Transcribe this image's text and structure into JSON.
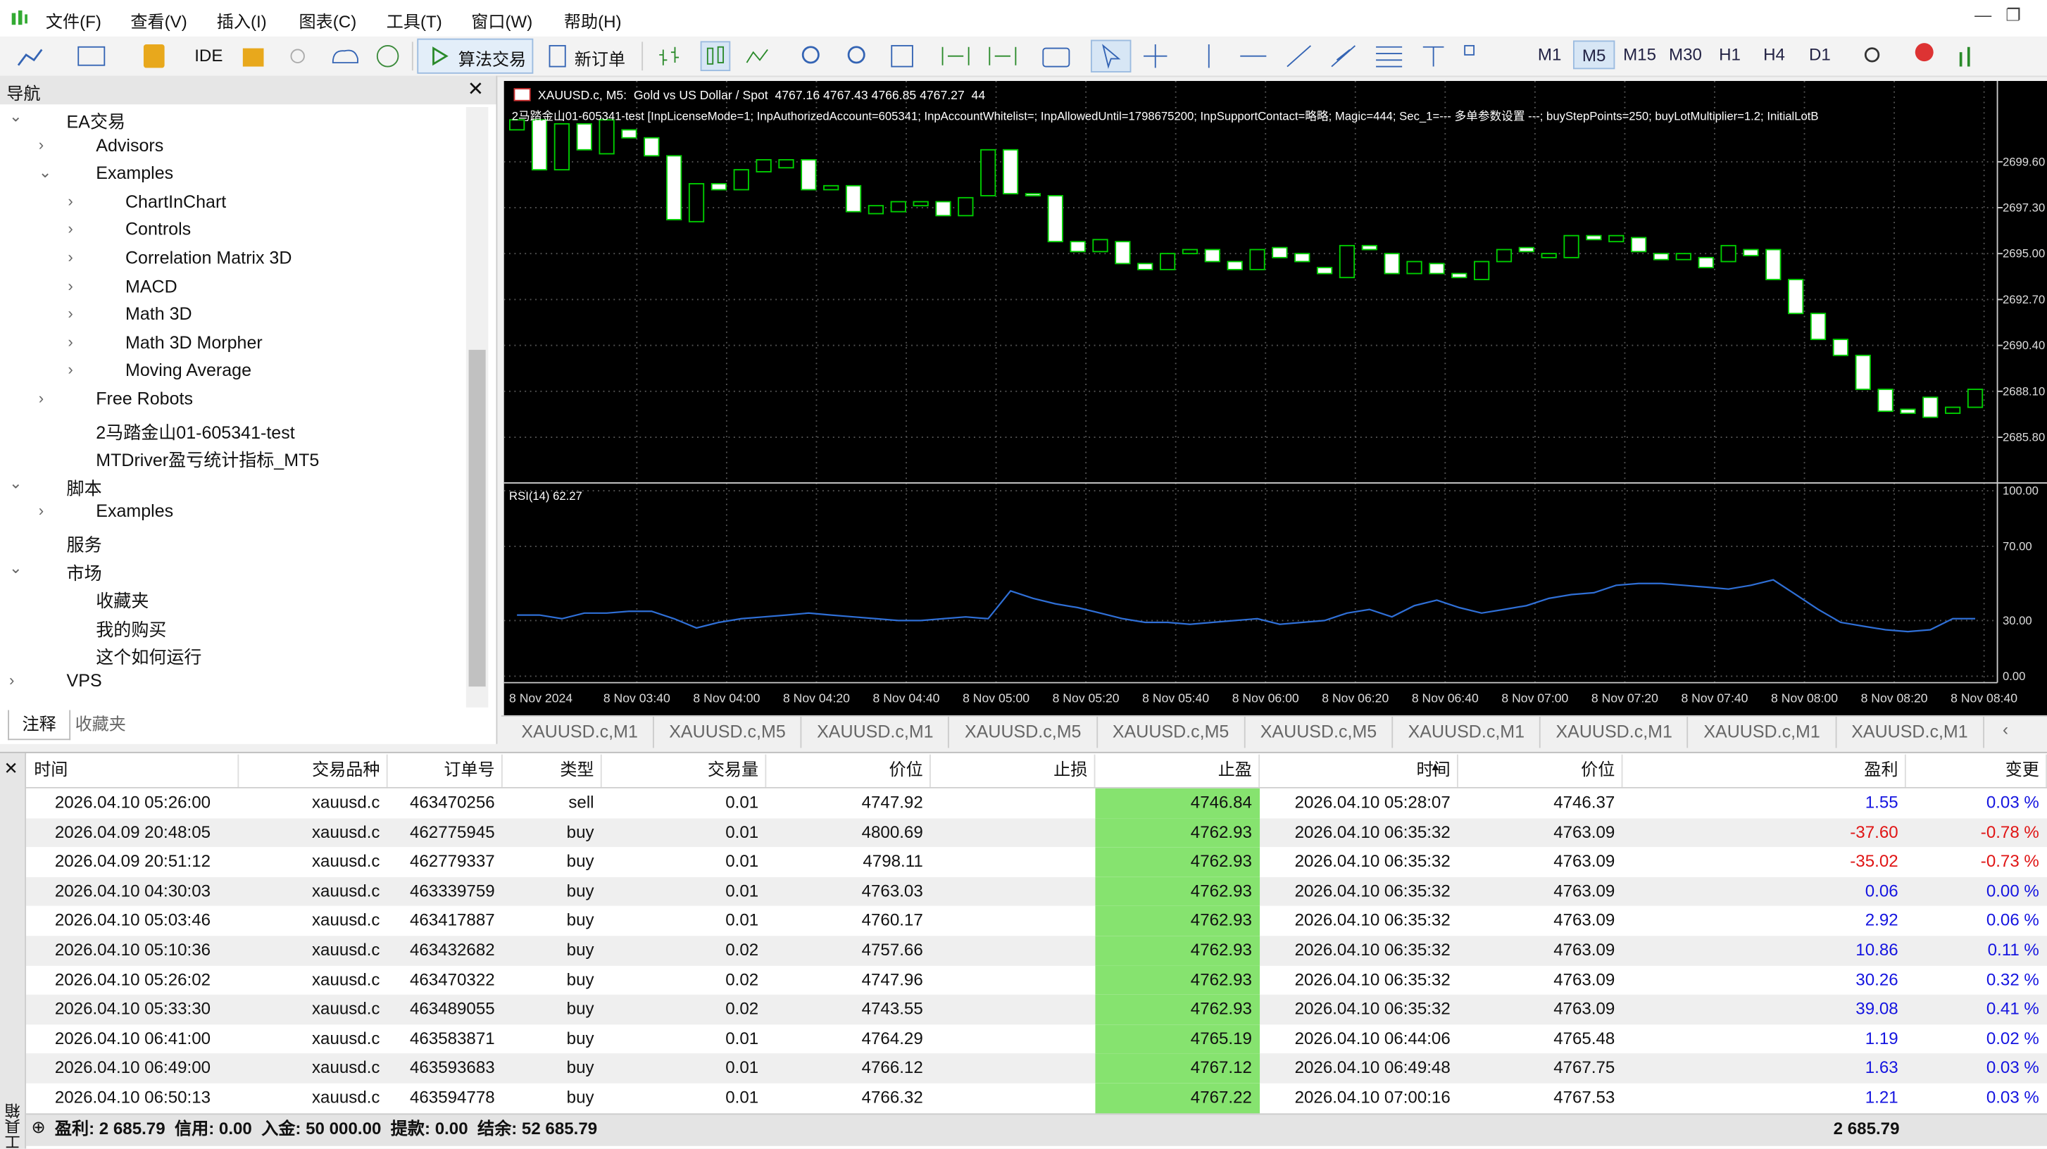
{
  "menu": [
    "文件(F)",
    "查看(V)",
    "插入(I)",
    "图表(C)",
    "工具(T)",
    "窗口(W)",
    "帮助(H)"
  ],
  "toolbar": {
    "ide": "IDE",
    "algo": "算法交易",
    "new_order": "新订单",
    "timeframes": [
      "M1",
      "M5",
      "M15",
      "M30",
      "H1",
      "H4",
      "D1"
    ],
    "active_timeframe": "M5"
  },
  "navigator": {
    "title": "导航",
    "tree": [
      {
        "label": "EA交易",
        "children": [
          {
            "label": "Advisors"
          },
          {
            "label": "Examples",
            "children": [
              {
                "label": "ChartInChart"
              },
              {
                "label": "Controls"
              },
              {
                "label": "Correlation Matrix 3D"
              },
              {
                "label": "MACD"
              },
              {
                "label": "Math 3D"
              },
              {
                "label": "Math 3D Morpher"
              },
              {
                "label": "Moving Average"
              }
            ]
          },
          {
            "label": "Free Robots"
          },
          {
            "label": "2马踏金山01-605341-test"
          },
          {
            "label": "MTDriver盈亏统计指标_MT5"
          }
        ]
      },
      {
        "label": "脚本",
        "children": [
          {
            "label": "Examples"
          }
        ]
      },
      {
        "label": "服务"
      },
      {
        "label": "市场",
        "children": [
          {
            "label": "收藏夹"
          },
          {
            "label": "我的购买"
          },
          {
            "label": "这个如何运行"
          }
        ]
      },
      {
        "label": "VPS"
      }
    ],
    "tabs": [
      "注释",
      "收藏夹"
    ]
  },
  "chart": {
    "title": "XAUUSD.c, M5:  Gold vs US Dollar / Spot  4767.16 4767.43 4766.85 4767.27  44",
    "ea_label": "2马踏金山01-605341-test [InpLicenseMode=1; InpAuthorizedAccount=605341; InpAccountWhitelist=; InpAllowedUntil=1798675200; InpSupportContact=略略; Magic=444; Sec_1=--- 多单参数设置 ---; buyStepPoints=250; buyLotMultiplier=1.2; InitialLotB",
    "ylim": [
      2683.64,
      2703.65
    ],
    "yticks": [
      {
        "value": 2699.6,
        "label": "2699.60"
      },
      {
        "value": 2697.3,
        "label": "2697.30"
      },
      {
        "value": 2695,
        "label": "2695.00"
      },
      {
        "value": 2692.7,
        "label": "2692.70"
      },
      {
        "value": 2690.4,
        "label": "2690.40"
      },
      {
        "value": 2688.1,
        "label": "2688.10"
      },
      {
        "value": 2685.8,
        "label": "2685.80"
      }
    ],
    "candles": [
      [
        2701.2,
        2701.7
      ],
      [
        2701.7,
        2699.2
      ],
      [
        2699.2,
        2701.5
      ],
      [
        2701.5,
        2700.2
      ],
      [
        2700.0,
        2701.7
      ],
      [
        2701.2,
        2700.8
      ],
      [
        2700.8,
        2699.9
      ],
      [
        2699.9,
        2696.7
      ],
      [
        2696.6,
        2698.5
      ],
      [
        2698.5,
        2698.2
      ],
      [
        2698.2,
        2699.2
      ],
      [
        2699.1,
        2699.7
      ],
      [
        2699.3,
        2699.7
      ],
      [
        2699.7,
        2698.2
      ],
      [
        2698.2,
        2698.4
      ],
      [
        2698.4,
        2697.1
      ],
      [
        2697.0,
        2697.4
      ],
      [
        2697.1,
        2697.6
      ],
      [
        2697.4,
        2697.6
      ],
      [
        2697.6,
        2696.9
      ],
      [
        2696.9,
        2697.8
      ],
      [
        2697.9,
        2700.2
      ],
      [
        2700.2,
        2698.0
      ],
      [
        2698.0,
        2697.9
      ],
      [
        2697.9,
        2695.6
      ],
      [
        2695.6,
        2695.1
      ],
      [
        2695.1,
        2695.7
      ],
      [
        2695.6,
        2694.5
      ],
      [
        2694.5,
        2694.2
      ],
      [
        2694.2,
        2695.0
      ],
      [
        2695.0,
        2695.2
      ],
      [
        2695.2,
        2694.6
      ],
      [
        2694.6,
        2694.2
      ],
      [
        2694.2,
        2695.2
      ],
      [
        2695.3,
        2694.8
      ],
      [
        2695.0,
        2694.6
      ],
      [
        2694.3,
        2694.0
      ],
      [
        2693.8,
        2695.4
      ],
      [
        2695.4,
        2695.2
      ],
      [
        2695.0,
        2694.0
      ],
      [
        2694.0,
        2694.6
      ],
      [
        2694.5,
        2694.0
      ],
      [
        2694.0,
        2693.8
      ],
      [
        2693.7,
        2694.6
      ],
      [
        2694.6,
        2695.2
      ],
      [
        2695.3,
        2695.1
      ],
      [
        2694.8,
        2695.0
      ],
      [
        2694.8,
        2695.9
      ],
      [
        2695.9,
        2695.7
      ],
      [
        2695.6,
        2695.9
      ],
      [
        2695.8,
        2695.1
      ],
      [
        2695.0,
        2694.7
      ],
      [
        2694.7,
        2695.0
      ],
      [
        2694.8,
        2694.3
      ],
      [
        2694.6,
        2695.4
      ],
      [
        2695.2,
        2694.9
      ],
      [
        2695.2,
        2693.7
      ],
      [
        2693.7,
        2692.0
      ],
      [
        2692.0,
        2690.7
      ],
      [
        2690.7,
        2689.9
      ],
      [
        2689.9,
        2688.2
      ],
      [
        2688.2,
        2687.1
      ],
      [
        2687.2,
        2687.0
      ],
      [
        2687.8,
        2686.8
      ],
      [
        2687.0,
        2687.3
      ],
      [
        2687.3,
        2688.2
      ]
    ],
    "rsi_label": "RSI(14) 62.27",
    "rsi_ylim": [
      -3.5,
      102.8
    ],
    "rsi_ticks": [
      {
        "value": 100,
        "label": "100.00"
      },
      {
        "value": 70,
        "label": "70.00"
      },
      {
        "value": 30,
        "label": "30.00"
      },
      {
        "value": 0,
        "label": "0.00"
      }
    ],
    "rsi": [
      33,
      33,
      31,
      34,
      34,
      35,
      35,
      31,
      26,
      29,
      31,
      32,
      33,
      34,
      33,
      32,
      31,
      30,
      30,
      31,
      32,
      31,
      46,
      42,
      39,
      37,
      34,
      31,
      29,
      29,
      28,
      29,
      30,
      31,
      28,
      29,
      30,
      34,
      36,
      32,
      38,
      41,
      37,
      34,
      36,
      38,
      42,
      44,
      45,
      49,
      50,
      50,
      49,
      48,
      47,
      49,
      52,
      44,
      36,
      29,
      27,
      25,
      24,
      25,
      31,
      31
    ],
    "time_labels": [
      "8 Nov 2024",
      "8 Nov 03:40",
      "8 Nov 04:00",
      "8 Nov 04:20",
      "8 Nov 04:40",
      "8 Nov 05:00",
      "8 Nov 05:20",
      "8 Nov 05:40",
      "8 Nov 06:00",
      "8 Nov 06:20",
      "8 Nov 06:40",
      "8 Nov 07:00",
      "8 Nov 07:20",
      "8 Nov 07:40",
      "8 Nov 08:00",
      "8 Nov 08:20",
      "8 Nov 08:40"
    ]
  },
  "chart_tabs": [
    "XAUUSD.c,M1",
    "XAUUSD.c,M5",
    "XAUUSD.c,M1",
    "XAUUSD.c,M5",
    "XAUUSD.c,M5",
    "XAUUSD.c,M5",
    "XAUUSD.c,M1",
    "XAUUSD.c,M1",
    "XAUUSD.c,M1",
    "XAUUSD.c,M1"
  ],
  "toolbox_title": "工具箱",
  "table": {
    "columns": [
      "时间",
      "交易品种",
      "订单号",
      "类型",
      "交易量",
      "价位",
      "止损",
      "止盈",
      "时间",
      "价位",
      "盈利",
      "变更"
    ],
    "rows": [
      {
        "open_time": "2026.04.10 05:26:00",
        "symbol": "xauusd.c",
        "ticket": "463470256",
        "type": "sell",
        "volume": "0.01",
        "price": "4747.92",
        "tp": "4746.84",
        "close_time": "2026.04.10 05:28:07",
        "close_price": "4746.37",
        "profit": "1.55",
        "change": "0.03 %"
      },
      {
        "open_time": "2026.04.09 20:48:05",
        "symbol": "xauusd.c",
        "ticket": "462775945",
        "type": "buy",
        "volume": "0.01",
        "price": "4800.69",
        "tp": "4762.93",
        "close_time": "2026.04.10 06:35:32",
        "close_price": "4763.09",
        "profit": "-37.60",
        "change": "-0.78 %"
      },
      {
        "open_time": "2026.04.09 20:51:12",
        "symbol": "xauusd.c",
        "ticket": "462779337",
        "type": "buy",
        "volume": "0.01",
        "price": "4798.11",
        "tp": "4762.93",
        "close_time": "2026.04.10 06:35:32",
        "close_price": "4763.09",
        "profit": "-35.02",
        "change": "-0.73 %"
      },
      {
        "open_time": "2026.04.10 04:30:03",
        "symbol": "xauusd.c",
        "ticket": "463339759",
        "type": "buy",
        "volume": "0.01",
        "price": "4763.03",
        "tp": "4762.93",
        "close_time": "2026.04.10 06:35:32",
        "close_price": "4763.09",
        "profit": "0.06",
        "change": "0.00 %"
      },
      {
        "open_time": "2026.04.10 05:03:46",
        "symbol": "xauusd.c",
        "ticket": "463417887",
        "type": "buy",
        "volume": "0.01",
        "price": "4760.17",
        "tp": "4762.93",
        "close_time": "2026.04.10 06:35:32",
        "close_price": "4763.09",
        "profit": "2.92",
        "change": "0.06 %"
      },
      {
        "open_time": "2026.04.10 05:10:36",
        "symbol": "xauusd.c",
        "ticket": "463432682",
        "type": "buy",
        "volume": "0.02",
        "price": "4757.66",
        "tp": "4762.93",
        "close_time": "2026.04.10 06:35:32",
        "close_price": "4763.09",
        "profit": "10.86",
        "change": "0.11 %"
      },
      {
        "open_time": "2026.04.10 05:26:02",
        "symbol": "xauusd.c",
        "ticket": "463470322",
        "type": "buy",
        "volume": "0.02",
        "price": "4747.96",
        "tp": "4762.93",
        "close_time": "2026.04.10 06:35:32",
        "close_price": "4763.09",
        "profit": "30.26",
        "change": "0.32 %"
      },
      {
        "open_time": "2026.04.10 05:33:30",
        "symbol": "xauusd.c",
        "ticket": "463489055",
        "type": "buy",
        "volume": "0.02",
        "price": "4743.55",
        "tp": "4762.93",
        "close_time": "2026.04.10 06:35:32",
        "close_price": "4763.09",
        "profit": "39.08",
        "change": "0.41 %"
      },
      {
        "open_time": "2026.04.10 06:41:00",
        "symbol": "xauusd.c",
        "ticket": "463583871",
        "type": "buy",
        "volume": "0.01",
        "price": "4764.29",
        "tp": "4765.19",
        "close_time": "2026.04.10 06:44:06",
        "close_price": "4765.48",
        "profit": "1.19",
        "change": "0.02 %"
      },
      {
        "open_time": "2026.04.10 06:49:00",
        "symbol": "xauusd.c",
        "ticket": "463593683",
        "type": "buy",
        "volume": "0.01",
        "price": "4766.12",
        "tp": "4767.12",
        "close_time": "2026.04.10 06:49:48",
        "close_price": "4767.75",
        "profit": "1.63",
        "change": "0.03 %"
      },
      {
        "open_time": "2026.04.10 06:50:13",
        "symbol": "xauusd.c",
        "ticket": "463594778",
        "type": "buy",
        "volume": "0.01",
        "price": "4766.32",
        "tp": "4767.22",
        "close_time": "2026.04.10 07:00:16",
        "close_price": "4767.53",
        "profit": "1.21",
        "change": "0.03 %"
      }
    ]
  },
  "footer": {
    "summary": "盈利: 2 685.79  信用: 0.00  入金: 50 000.00  提款: 0.00  结余: 52 685.79",
    "total": "2 685.79"
  }
}
